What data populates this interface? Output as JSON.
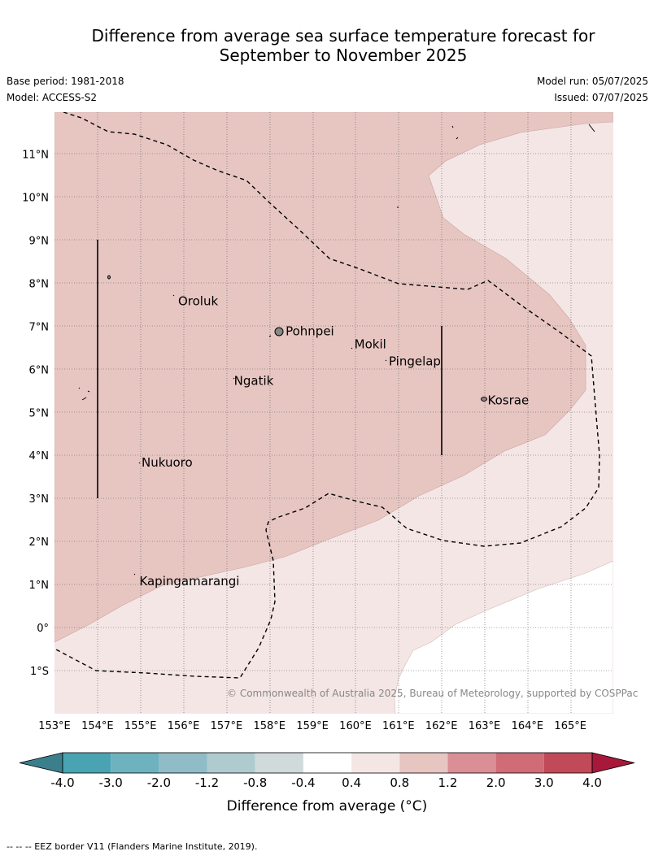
{
  "title_line1": "Difference from average sea surface temperature forecast for",
  "title_line2": "September to November 2025",
  "base_period": "Base period: 1981-2018",
  "model": "Model: ACCESS-S2",
  "model_run": "Model run: 05/07/2025",
  "issued": "Issued: 07/07/2025",
  "lat_labels": [
    "11°N",
    "10°N",
    "9°N",
    "8°N",
    "7°N",
    "6°N",
    "5°N",
    "4°N",
    "3°N",
    "2°N",
    "1°N",
    "0°",
    "1°S"
  ],
  "lon_labels": [
    "153°E",
    "154°E",
    "155°E",
    "156°E",
    "157°E",
    "158°E",
    "159°E",
    "160°E",
    "161°E",
    "162°E",
    "163°E",
    "164°E",
    "165°E"
  ],
  "places": [
    {
      "name": "Oroluk",
      "lon": 155.8,
      "lat": 7.6
    },
    {
      "name": "Pohnpei",
      "lon": 158.3,
      "lat": 6.9
    },
    {
      "name": "Mokil",
      "lon": 159.9,
      "lat": 6.6
    },
    {
      "name": "Pingelap",
      "lon": 160.7,
      "lat": 6.2
    },
    {
      "name": "Ngatik",
      "lon": 157.1,
      "lat": 5.75
    },
    {
      "name": "Kosrae",
      "lon": 163.0,
      "lat": 5.3
    },
    {
      "name": "Nukuoro",
      "lon": 154.95,
      "lat": 3.85
    },
    {
      "name": "Kapingamarangi",
      "lon": 154.9,
      "lat": 1.1
    }
  ],
  "copyright": "© Commonwealth of Australia 2025, Bureau of Meteorology, supported by COSPPac",
  "colorbar": {
    "labels": [
      "-4.0",
      "-3.0",
      "-2.0",
      "-1.2",
      "-0.8",
      "-0.4",
      "0.4",
      "0.8",
      "1.2",
      "2.0",
      "3.0",
      "4.0"
    ],
    "colors": [
      "#4aa3b3",
      "#6eb1bf",
      "#8fbcc7",
      "#afcbcf",
      "#d0dadb",
      "#ffffff",
      "#f4e6e5",
      "#e7c6c2",
      "#d98f95",
      "#cf6c75",
      "#c04a58"
    ],
    "under_color": "#3b7f8d",
    "over_color": "#a8183a",
    "title": "Difference from average (°C)"
  },
  "fill_colors": {
    "band_0.4_0.8": "#f4e6e5",
    "band_0.8_1.2": "#e7c6c2"
  },
  "footer": "--  --  -- EEZ border V11 (Flanders Marine Institute, 2019)."
}
